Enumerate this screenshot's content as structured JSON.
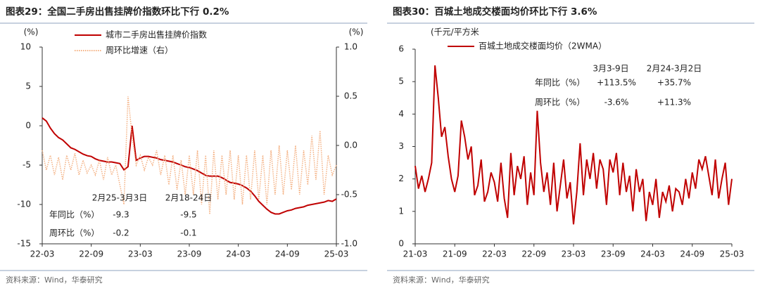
{
  "chart_data": [
    {
      "type": "line",
      "title": "图表29：全国二手房出售挂牌价指数环比下行 0.2%",
      "source": "资料来源：Wind，华泰研究",
      "ylabel": "(%)",
      "y2label": "(%)",
      "categories": [
        "22-03",
        null,
        null,
        null,
        null,
        null,
        null,
        null,
        null,
        null,
        null,
        null,
        "22-09",
        null,
        null,
        null,
        null,
        null,
        null,
        null,
        null,
        null,
        null,
        null,
        "23-03",
        null,
        null,
        null,
        null,
        null,
        null,
        null,
        null,
        null,
        null,
        null,
        "23-09",
        null,
        null,
        null,
        null,
        null,
        null,
        null,
        null,
        null,
        null,
        null,
        "24-03",
        null,
        null,
        null,
        null,
        null,
        null,
        null,
        null,
        null,
        null,
        null,
        "24-09",
        null,
        null,
        null,
        null,
        null,
        null,
        null,
        null,
        null,
        null,
        null,
        "25-03"
      ],
      "ylim": [
        -15,
        10
      ],
      "yticks": [
        10,
        5,
        0,
        -5,
        -10,
        -15
      ],
      "y2lim": [
        -1,
        1
      ],
      "y2ticks": [
        {
          "value": 1,
          "label": "1.0"
        },
        {
          "value": 0.5,
          "label": "0.5"
        },
        {
          "value": 0,
          "label": "0.0"
        },
        {
          "value": -0.5,
          "label": "-0.5"
        },
        {
          "value": -1,
          "label": "-1.0"
        }
      ],
      "series": [
        {
          "name": "城市二手房出售挂牌价指数",
          "color": "#c00000",
          "line_style": "solid",
          "values": [
            1.0,
            0.6,
            -0.3,
            -1.0,
            -1.5,
            -1.8,
            -2.3,
            -2.8,
            -3.0,
            -3.3,
            -3.6,
            -3.8,
            -3.9,
            -4.2,
            -4.4,
            -4.5,
            -4.6,
            -4.6,
            -4.7,
            -4.8,
            -5.6,
            -5.2,
            0.0,
            -4.4,
            -4.1,
            -3.9,
            -3.9,
            -4.0,
            -4.1,
            -4.3,
            -4.4,
            -4.5,
            -4.6,
            -4.8,
            -5.0,
            -5.2,
            -5.3,
            -5.5,
            -5.7,
            -6.0,
            -6.3,
            -6.4,
            -6.4,
            -6.4,
            -6.6,
            -6.9,
            -7.2,
            -7.3,
            -7.4,
            -7.6,
            -7.9,
            -8.3,
            -8.9,
            -9.6,
            -10.1,
            -10.6,
            -11.0,
            -11.2,
            -11.2,
            -11.0,
            -10.8,
            -10.7,
            -10.5,
            -10.4,
            -10.3,
            -10.1,
            -10.0,
            -9.9,
            -9.8,
            -9.7,
            -9.5,
            -9.6,
            -9.3
          ]
        },
        {
          "name": "周环比增速（右）",
          "color": "#f4b183",
          "line_style": "dotted",
          "axis": "y2",
          "values": [
            -0.05,
            -0.25,
            -0.1,
            -0.3,
            -0.12,
            -0.35,
            -0.1,
            -0.25,
            -0.08,
            -0.3,
            -0.15,
            -0.28,
            -0.2,
            -0.3,
            -0.15,
            -0.35,
            -0.12,
            -0.3,
            -0.2,
            -0.4,
            -0.6,
            0.5,
            0.1,
            -0.2,
            -0.1,
            -0.25,
            -0.12,
            -0.2,
            -0.05,
            -0.3,
            -0.1,
            -0.4,
            -0.1,
            -0.45,
            -0.15,
            -0.5,
            -0.1,
            -0.5,
            -0.05,
            -0.6,
            -0.1,
            -0.7,
            -0.05,
            -0.55,
            -0.1,
            -0.5,
            -0.05,
            -0.55,
            -0.1,
            -0.6,
            -0.1,
            -0.55,
            -0.05,
            -0.55,
            -0.1,
            -0.6,
            -0.05,
            -0.5,
            0.0,
            -0.5,
            -0.05,
            -0.45,
            0.0,
            -0.5,
            -0.05,
            -0.4,
            0.1,
            -0.35,
            0.15,
            -0.5,
            -0.1,
            -0.3,
            -0.2
          ]
        }
      ],
      "annotation": {
        "columns": [
          "2月25-3月3日",
          "2月18-24日"
        ],
        "rows": [
          {
            "label": "年同比（%）",
            "values": [
              "-9.3",
              "-9.5"
            ]
          },
          {
            "label": "周环比（%）",
            "values": [
              "-0.2",
              "-0.1"
            ]
          }
        ]
      }
    },
    {
      "type": "line",
      "title": "图表30：百城土地成交楼面均价环比下行 3.6%",
      "source": "资料来源：Wind，华泰研究",
      "ylabel": "(千元/平方米",
      "categories": [
        "21-03",
        null,
        null,
        null,
        null,
        null,
        null,
        null,
        null,
        null,
        null,
        null,
        "21-09",
        null,
        null,
        null,
        null,
        null,
        null,
        null,
        null,
        null,
        null,
        null,
        "22-03",
        null,
        null,
        null,
        null,
        null,
        null,
        null,
        null,
        null,
        null,
        null,
        "22-09",
        null,
        null,
        null,
        null,
        null,
        null,
        null,
        null,
        null,
        null,
        null,
        "23-03",
        null,
        null,
        null,
        null,
        null,
        null,
        null,
        null,
        null,
        null,
        null,
        "23-09",
        null,
        null,
        null,
        null,
        null,
        null,
        null,
        null,
        null,
        null,
        null,
        "24-03",
        null,
        null,
        null,
        null,
        null,
        null,
        null,
        null,
        null,
        null,
        null,
        "24-09",
        null,
        null,
        null,
        null,
        null,
        null,
        null,
        null,
        null,
        null,
        null,
        "25-03"
      ],
      "ylim": [
        0,
        6
      ],
      "yticks": [
        0,
        1,
        2,
        3,
        4,
        5,
        6
      ],
      "series": [
        {
          "name": "百城土地成交楼面均价（2WMA）",
          "color": "#c00000",
          "line_style": "solid",
          "values": [
            2.4,
            1.7,
            2.1,
            1.6,
            2.0,
            2.5,
            5.5,
            4.5,
            3.3,
            3.6,
            2.7,
            2.0,
            1.6,
            2.1,
            3.8,
            3.3,
            2.6,
            3.0,
            1.5,
            1.8,
            2.6,
            1.3,
            1.6,
            2.2,
            1.9,
            1.3,
            2.5,
            1.4,
            0.8,
            2.8,
            1.5,
            2.4,
            2.0,
            2.7,
            1.2,
            2.2,
            1.5,
            4.1,
            2.5,
            1.6,
            2.2,
            1.2,
            2.5,
            1.0,
            1.8,
            2.6,
            1.4,
            1.9,
            0.6,
            1.6,
            3.1,
            1.5,
            2.6,
            2.0,
            2.8,
            1.7,
            2.6,
            2.3,
            1.2,
            2.6,
            2.2,
            2.8,
            1.5,
            2.5,
            1.6,
            2.1,
            1.0,
            2.3,
            1.6,
            2.0,
            0.7,
            1.6,
            1.2,
            2.0,
            0.8,
            1.6,
            1.3,
            1.8,
            1.0,
            1.7,
            1.6,
            1.2,
            2.0,
            1.4,
            2.2,
            1.7,
            2.6,
            2.3,
            2.7,
            2.1,
            1.5,
            2.6,
            1.4,
            2.0,
            2.5,
            1.2,
            2.0
          ]
        }
      ],
      "annotation": {
        "columns": [
          "3月3-9日",
          "2月24-3月2日"
        ],
        "rows": [
          {
            "label": "年同比（%）",
            "values": [
              "+113.5%",
              "+35.7%"
            ]
          },
          {
            "label": "周环比（%）",
            "values": [
              "-3.6%",
              "+11.3%"
            ]
          }
        ]
      }
    }
  ]
}
